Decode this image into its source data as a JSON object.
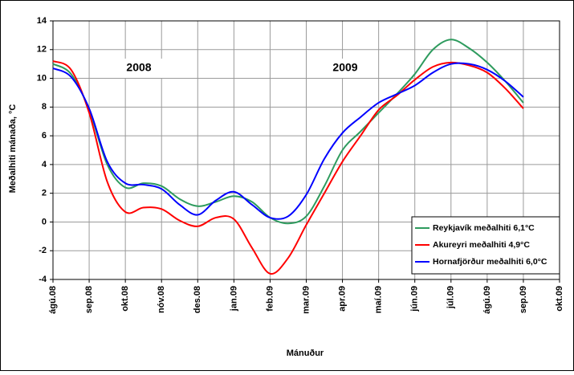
{
  "chart_data": {
    "type": "line",
    "y_label": "Meðalhiti mánaða, °C",
    "x_label": "Mánuður",
    "annotations": [
      "2008",
      "2009"
    ],
    "categories": [
      "ágú.08",
      null,
      "sep.08",
      null,
      "okt.08",
      null,
      "nóv.08",
      null,
      "des.08",
      null,
      "jan.09",
      null,
      "feb.09",
      null,
      "mar.09",
      null,
      "apr.09",
      null,
      "maí.09",
      null,
      "jún.09",
      null,
      "júl.09",
      null,
      "ágú.09",
      null,
      "sep.09",
      null,
      "okt.09"
    ],
    "series": [
      {
        "name": "Reykjavík meðalhiti 6,1°C",
        "color": "#2e9b5e",
        "values": [
          11.0,
          10.3,
          7.8,
          4.0,
          2.4,
          2.7,
          2.5,
          1.6,
          1.1,
          1.4,
          1.8,
          1.4,
          0.3,
          -0.1,
          0.4,
          2.5,
          5.0,
          6.3,
          7.6,
          8.9,
          10.3,
          12.0,
          12.7,
          12.1,
          11.1,
          9.8,
          8.3,
          null,
          null
        ]
      },
      {
        "name": "Akureyri meðalhiti 4,9°C",
        "color": "#ff0000",
        "values": [
          11.2,
          10.6,
          7.6,
          2.8,
          0.7,
          1.0,
          0.9,
          0.1,
          -0.3,
          0.3,
          0.2,
          -1.8,
          -3.6,
          -2.5,
          -0.2,
          2.0,
          4.2,
          6.0,
          7.8,
          8.8,
          9.9,
          10.8,
          11.1,
          10.9,
          10.4,
          9.3,
          7.9,
          null,
          null
        ]
      },
      {
        "name": "Hornafjörður meðalhiti 6,0°C",
        "color": "#0000ff",
        "values": [
          10.7,
          10.1,
          7.9,
          4.2,
          2.7,
          2.6,
          2.3,
          1.2,
          0.5,
          1.5,
          2.1,
          1.2,
          0.3,
          0.4,
          1.9,
          4.4,
          6.2,
          7.3,
          8.3,
          8.9,
          9.5,
          10.4,
          11.0,
          11.0,
          10.6,
          9.8,
          8.7,
          null,
          null
        ]
      }
    ],
    "ylim": [
      -4,
      14
    ],
    "yticks": [
      -4,
      -2,
      0,
      2,
      4,
      6,
      8,
      10,
      12,
      14
    ],
    "grid": true,
    "legend": "bottom-right"
  }
}
